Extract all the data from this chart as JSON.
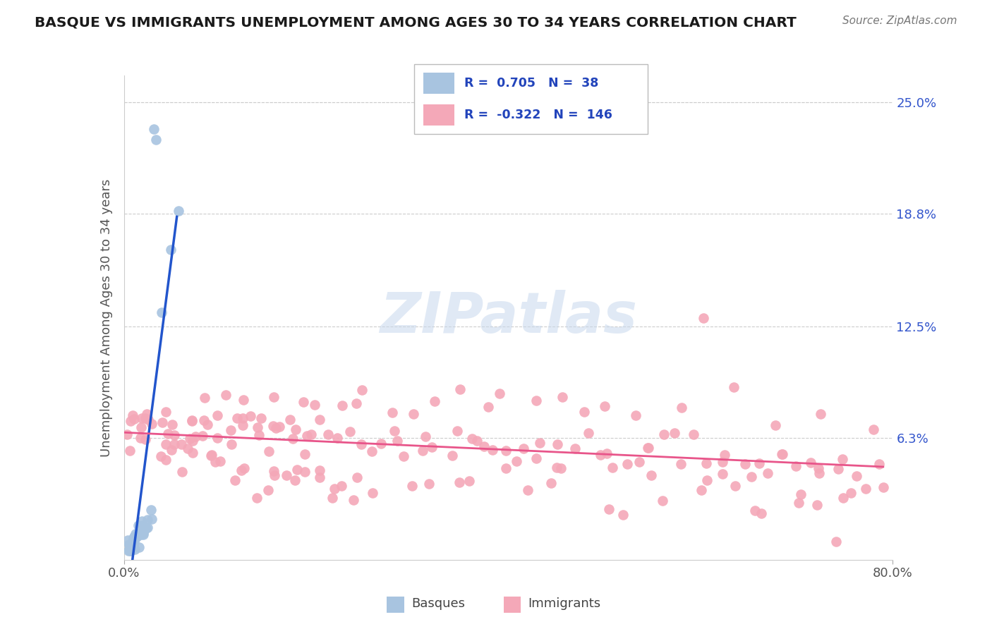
{
  "title": "BASQUE VS IMMIGRANTS UNEMPLOYMENT AMONG AGES 30 TO 34 YEARS CORRELATION CHART",
  "source": "Source: ZipAtlas.com",
  "ylabel": "Unemployment Among Ages 30 to 34 years",
  "xlim": [
    0.0,
    0.8
  ],
  "ylim": [
    -0.005,
    0.265
  ],
  "right_yticks": [
    0.063,
    0.125,
    0.188,
    0.25
  ],
  "right_yticklabels": [
    "6.3%",
    "12.5%",
    "18.8%",
    "25.0%"
  ],
  "legend_R_basque": "0.705",
  "legend_N_basque": "38",
  "legend_R_immigrants": "-0.322",
  "legend_N_immigrants": "146",
  "basque_color": "#a8c4e0",
  "immigrants_color": "#f4a8b8",
  "basque_line_color": "#2255cc",
  "immigrants_line_color": "#e8558a",
  "grid_color": "#cccccc",
  "basque_x": [
    0.005,
    0.005,
    0.005,
    0.005,
    0.005,
    0.007,
    0.007,
    0.007,
    0.01,
    0.01,
    0.01,
    0.01,
    0.01,
    0.01,
    0.01,
    0.012,
    0.012,
    0.012,
    0.015,
    0.015,
    0.015,
    0.015,
    0.018,
    0.018,
    0.02,
    0.02,
    0.02,
    0.022,
    0.022,
    0.025,
    0.025,
    0.028,
    0.03,
    0.033,
    0.033,
    0.04,
    0.05,
    0.055
  ],
  "basque_y": [
    0.0,
    0.0,
    0.002,
    0.004,
    0.005,
    0.0,
    0.002,
    0.004,
    0.0,
    0.0,
    0.002,
    0.003,
    0.004,
    0.005,
    0.007,
    0.005,
    0.008,
    0.01,
    0.005,
    0.007,
    0.01,
    0.012,
    0.01,
    0.013,
    0.01,
    0.013,
    0.015,
    0.012,
    0.015,
    0.015,
    0.018,
    0.02,
    0.02,
    0.23,
    0.235,
    0.13,
    0.165,
    0.19
  ],
  "immigrants_x": [
    0.005,
    0.007,
    0.01,
    0.012,
    0.015,
    0.018,
    0.02,
    0.022,
    0.025,
    0.028,
    0.03,
    0.033,
    0.036,
    0.04,
    0.043,
    0.046,
    0.05,
    0.053,
    0.056,
    0.06,
    0.063,
    0.066,
    0.07,
    0.073,
    0.076,
    0.08,
    0.085,
    0.09,
    0.095,
    0.1,
    0.105,
    0.11,
    0.115,
    0.12,
    0.125,
    0.13,
    0.135,
    0.14,
    0.145,
    0.15,
    0.155,
    0.16,
    0.165,
    0.17,
    0.175,
    0.18,
    0.185,
    0.19,
    0.195,
    0.2,
    0.21,
    0.22,
    0.23,
    0.24,
    0.25,
    0.26,
    0.27,
    0.28,
    0.29,
    0.3,
    0.31,
    0.32,
    0.33,
    0.34,
    0.35,
    0.36,
    0.37,
    0.38,
    0.39,
    0.4,
    0.41,
    0.42,
    0.43,
    0.44,
    0.45,
    0.46,
    0.47,
    0.48,
    0.49,
    0.5,
    0.51,
    0.52,
    0.53,
    0.54,
    0.55,
    0.56,
    0.57,
    0.58,
    0.59,
    0.6,
    0.61,
    0.62,
    0.63,
    0.64,
    0.65,
    0.66,
    0.67,
    0.68,
    0.69,
    0.7,
    0.71,
    0.72,
    0.73,
    0.74,
    0.75,
    0.76,
    0.77,
    0.78,
    0.79,
    0.015,
    0.025,
    0.035,
    0.045,
    0.055,
    0.065,
    0.075,
    0.085,
    0.095,
    0.105,
    0.115,
    0.125,
    0.135,
    0.145,
    0.155,
    0.165,
    0.175,
    0.185,
    0.195,
    0.205,
    0.215,
    0.225,
    0.235,
    0.245,
    0.35,
    0.45,
    0.55,
    0.65,
    0.75,
    0.12,
    0.22,
    0.32,
    0.42,
    0.52,
    0.62,
    0.72,
    0.16,
    0.26,
    0.36,
    0.46,
    0.56,
    0.66,
    0.76,
    0.1,
    0.2,
    0.3,
    0.4,
    0.5,
    0.6,
    0.7
  ],
  "immigrants_y": [
    0.07,
    0.065,
    0.075,
    0.068,
    0.072,
    0.065,
    0.07,
    0.063,
    0.068,
    0.07,
    0.075,
    0.068,
    0.072,
    0.063,
    0.068,
    0.07,
    0.065,
    0.068,
    0.072,
    0.07,
    0.065,
    0.068,
    0.063,
    0.07,
    0.068,
    0.072,
    0.065,
    0.07,
    0.063,
    0.068,
    0.065,
    0.07,
    0.068,
    0.063,
    0.07,
    0.065,
    0.068,
    0.072,
    0.07,
    0.065,
    0.068,
    0.063,
    0.07,
    0.068,
    0.065,
    0.07,
    0.063,
    0.068,
    0.072,
    0.065,
    0.063,
    0.068,
    0.07,
    0.065,
    0.063,
    0.06,
    0.058,
    0.063,
    0.06,
    0.058,
    0.063,
    0.06,
    0.058,
    0.063,
    0.06,
    0.058,
    0.063,
    0.06,
    0.055,
    0.06,
    0.058,
    0.055,
    0.06,
    0.058,
    0.055,
    0.06,
    0.058,
    0.055,
    0.06,
    0.055,
    0.058,
    0.055,
    0.053,
    0.055,
    0.053,
    0.055,
    0.053,
    0.05,
    0.053,
    0.05,
    0.053,
    0.05,
    0.053,
    0.05,
    0.048,
    0.05,
    0.048,
    0.05,
    0.048,
    0.05,
    0.048,
    0.05,
    0.048,
    0.045,
    0.048,
    0.045,
    0.048,
    0.045,
    0.045,
    0.055,
    0.058,
    0.053,
    0.058,
    0.053,
    0.05,
    0.055,
    0.05,
    0.048,
    0.05,
    0.048,
    0.045,
    0.048,
    0.043,
    0.045,
    0.043,
    0.043,
    0.04,
    0.043,
    0.04,
    0.04,
    0.038,
    0.038,
    0.035,
    0.038,
    0.035,
    0.033,
    0.035,
    0.03,
    0.04,
    0.038,
    0.035,
    0.033,
    0.03,
    0.035,
    0.03,
    0.038,
    0.035,
    0.033,
    0.038,
    0.033,
    0.03,
    0.033,
    0.045,
    0.043,
    0.04,
    0.043,
    0.04,
    0.038,
    0.035
  ],
  "imm_extra_x": [
    0.1,
    0.15,
    0.2,
    0.25,
    0.3,
    0.35,
    0.4,
    0.45,
    0.5,
    0.08,
    0.13,
    0.18,
    0.23,
    0.28,
    0.33,
    0.38,
    0.43,
    0.48,
    0.53,
    0.58,
    0.63,
    0.68,
    0.73,
    0.78,
    0.6,
    0.65,
    0.7,
    0.75
  ],
  "imm_extra_y": [
    0.085,
    0.09,
    0.088,
    0.092,
    0.085,
    0.09,
    0.092,
    0.088,
    0.085,
    0.08,
    0.085,
    0.08,
    0.078,
    0.082,
    0.08,
    0.078,
    0.082,
    0.08,
    0.078,
    0.075,
    0.078,
    0.075,
    0.073,
    0.07,
    0.125,
    0.02,
    0.025,
    0.022
  ]
}
